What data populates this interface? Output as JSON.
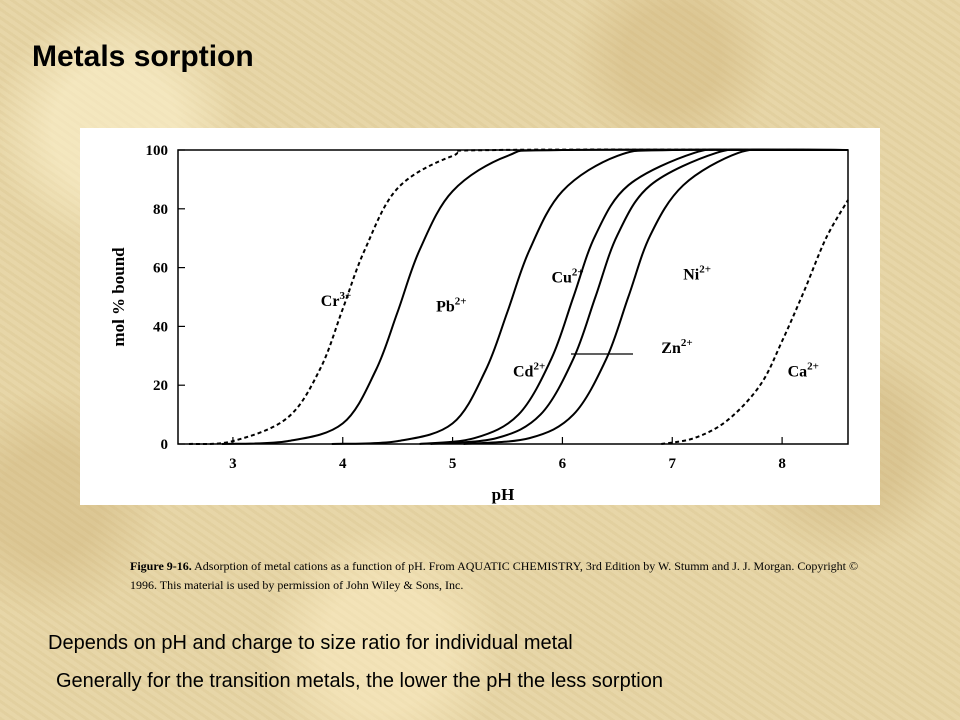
{
  "slide": {
    "title": "Metals sorption",
    "caption_label": "Figure 9-16.",
    "caption_text": "Adsorption of metal cations as a function of pH. From AQUATIC CHEMISTRY, 3rd Edition by W. Stumm and J. J. Morgan. Copyright © 1996. This material is used by permission  of John Wiley  & Sons, Inc.",
    "bullets": [
      "Depends on pH and charge to size ratio for individual metal",
      "Generally for the transition metals, the lower the pH the less sorption"
    ]
  },
  "chart_data": {
    "type": "line",
    "title": "",
    "xlabel": "pH",
    "ylabel": "mol % bound",
    "xlim": [
      2.5,
      8.6
    ],
    "ylim": [
      0,
      100
    ],
    "xticks": [
      3,
      4,
      5,
      6,
      7,
      8
    ],
    "yticks": [
      0,
      20,
      40,
      60,
      80,
      100
    ],
    "grid": false,
    "series": [
      {
        "name": "Cr",
        "charge": "3+",
        "style": "dashed",
        "x": [
          2.6,
          3.0,
          3.5,
          3.8,
          4.0,
          4.2,
          4.5,
          5.0,
          5.4
        ],
        "y": [
          0,
          1,
          9,
          26,
          46,
          66,
          87,
          98,
          100
        ]
      },
      {
        "name": "Pb",
        "charge": "2+",
        "style": "solid",
        "x": [
          2.9,
          3.5,
          4.0,
          4.3,
          4.5,
          4.7,
          5.0,
          5.5,
          6.0
        ],
        "y": [
          0,
          1,
          7,
          25,
          45,
          66,
          86,
          98,
          100
        ]
      },
      {
        "name": "Cu",
        "charge": "2+",
        "style": "solid",
        "x": [
          3.9,
          4.5,
          5.0,
          5.3,
          5.5,
          5.7,
          6.0,
          6.5,
          7.0
        ],
        "y": [
          0,
          1,
          7,
          25,
          45,
          66,
          86,
          98,
          100
        ]
      },
      {
        "name": "Cd",
        "charge": "2+",
        "style": "solid",
        "x": [
          4.7,
          5.2,
          5.6,
          5.9,
          6.1,
          6.3,
          6.6,
          7.2,
          7.6
        ],
        "y": [
          0,
          2,
          10,
          29,
          50,
          71,
          88,
          99,
          100
        ]
      },
      {
        "name": "Ni",
        "charge": "2+",
        "style": "solid",
        "x": [
          4.8,
          5.4,
          5.8,
          6.1,
          6.3,
          6.5,
          6.8,
          7.4,
          7.8
        ],
        "y": [
          0,
          2,
          10,
          29,
          50,
          71,
          88,
          99,
          100
        ]
      },
      {
        "name": "Zn",
        "charge": "2+",
        "style": "solid",
        "x": [
          5.1,
          5.7,
          6.1,
          6.4,
          6.6,
          6.8,
          7.1,
          7.6,
          8.0
        ],
        "y": [
          0,
          2,
          10,
          29,
          50,
          71,
          88,
          99,
          100
        ]
      },
      {
        "name": "Ca",
        "charge": "2+",
        "style": "dashed",
        "x": [
          6.9,
          7.2,
          7.5,
          7.8,
          8.0,
          8.2,
          8.4,
          8.6
        ],
        "y": [
          0,
          2,
          8,
          20,
          35,
          52,
          70,
          83
        ]
      }
    ],
    "labels": [
      {
        "name": "Cr",
        "charge": "3+",
        "x": 3.8,
        "y": 47
      },
      {
        "name": "Pb",
        "charge": "2+",
        "x": 4.85,
        "y": 45
      },
      {
        "name": "Cu",
        "charge": "2+",
        "x": 5.9,
        "y": 55
      },
      {
        "name": "Ni",
        "charge": "2+",
        "x": 7.1,
        "y": 56
      },
      {
        "name": "Zn",
        "charge": "2+",
        "x": 6.9,
        "y": 31
      },
      {
        "name": "Cd",
        "charge": "2+",
        "x": 5.55,
        "y": 23
      },
      {
        "name": "Ca",
        "charge": "2+",
        "x": 8.05,
        "y": 23
      }
    ]
  }
}
